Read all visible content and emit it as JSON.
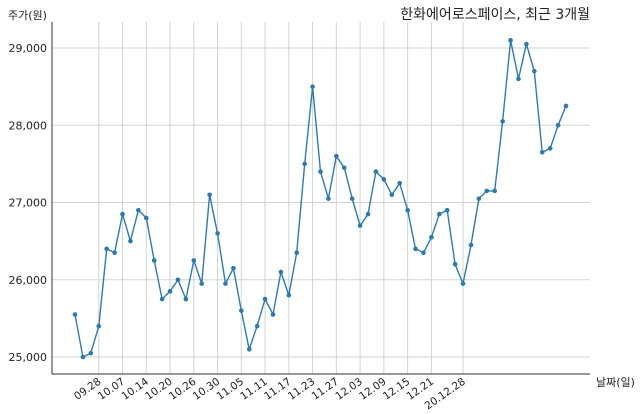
{
  "chart_data": {
    "type": "line",
    "title": "한화에어로스페이스, 최근 3개월",
    "ylabel": "주가(원)",
    "xlabel": "날짜(일)",
    "ylim": [
      24800,
      29400
    ],
    "yticks": [
      25000,
      26000,
      27000,
      28000,
      29000
    ],
    "ytick_labels": [
      "25,000",
      "26,000",
      "27,000",
      "28,000",
      "29,000"
    ],
    "xtick_labels": [
      "09.28",
      "10.07",
      "10.14",
      "10.20",
      "10.26",
      "10.30",
      "11.05",
      "11.11",
      "11.17",
      "11.23",
      "11.27",
      "12.03",
      "12.09",
      "12.15",
      "12.21",
      "20.12.28"
    ],
    "xtick_index": [
      3,
      6,
      9,
      12,
      15,
      18,
      21,
      24,
      27,
      30,
      33,
      36,
      39,
      42,
      45,
      49
    ],
    "grid": true,
    "line_color": "#2a7bb5",
    "series": [
      {
        "values": [
          25550,
          25000,
          25050,
          25400,
          26400,
          26350,
          26850,
          26500,
          26900,
          26800,
          26250,
          25750,
          25850,
          26000,
          25750,
          26250,
          25950,
          27100,
          26600,
          25950,
          26150,
          25600,
          25100,
          25400,
          25750,
          25550,
          26100,
          25800,
          26350,
          27500,
          28500,
          27400,
          27050,
          27600,
          27450,
          27050,
          26700,
          26850,
          27400,
          27300,
          27100,
          27250,
          26900,
          26400,
          26350,
          26550,
          26850,
          26900,
          26200,
          25950,
          26450,
          27050,
          27150,
          27150,
          28050,
          29100,
          28600,
          29050,
          28700,
          27650,
          27700,
          28000,
          28250
        ]
      }
    ]
  }
}
